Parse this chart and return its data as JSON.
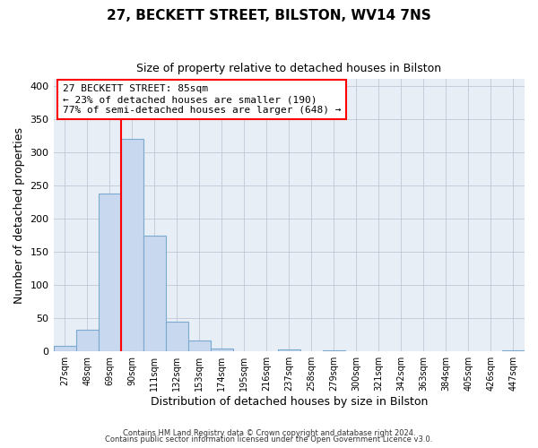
{
  "title": "27, BECKETT STREET, BILSTON, WV14 7NS",
  "subtitle": "Size of property relative to detached houses in Bilston",
  "xlabel": "Distribution of detached houses by size in Bilston",
  "ylabel": "Number of detached properties",
  "bin_labels": [
    "27sqm",
    "48sqm",
    "69sqm",
    "90sqm",
    "111sqm",
    "132sqm",
    "153sqm",
    "174sqm",
    "195sqm",
    "216sqm",
    "237sqm",
    "258sqm",
    "279sqm",
    "300sqm",
    "321sqm",
    "342sqm",
    "363sqm",
    "384sqm",
    "405sqm",
    "426sqm",
    "447sqm"
  ],
  "bin_edges": [
    27,
    48,
    69,
    90,
    111,
    132,
    153,
    174,
    195,
    216,
    237,
    258,
    279,
    300,
    321,
    342,
    363,
    384,
    405,
    426,
    447
  ],
  "bar_heights": [
    8,
    32,
    238,
    320,
    175,
    45,
    17,
    5,
    0,
    0,
    3,
    0,
    1,
    0,
    0,
    0,
    0,
    0,
    0,
    0,
    2
  ],
  "bar_color": "#c8d8ee",
  "bar_edge_color": "#7aaad0",
  "vline_x": 90,
  "vline_color": "red",
  "annotation_text": "27 BECKETT STREET: 85sqm\n← 23% of detached houses are smaller (190)\n77% of semi-detached houses are larger (648) →",
  "annotation_box_color": "white",
  "annotation_box_edge_color": "red",
  "ylim": [
    0,
    410
  ],
  "yticks": [
    0,
    50,
    100,
    150,
    200,
    250,
    300,
    350,
    400
  ],
  "footer1": "Contains HM Land Registry data © Crown copyright and database right 2024.",
  "footer2": "Contains public sector information licensed under the Open Government Licence v3.0.",
  "bg_color": "#ffffff",
  "plot_bg_color": "#e8eef5",
  "grid_color": "#c0c8d8"
}
